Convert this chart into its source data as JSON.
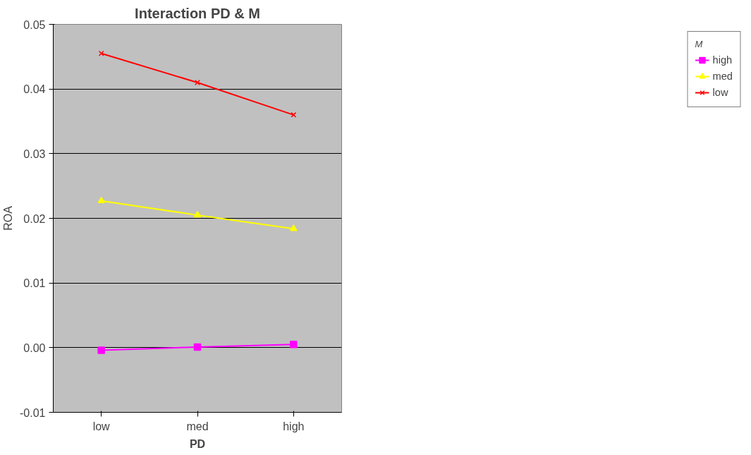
{
  "chart_data": {
    "type": "line",
    "title": "Interaction PD & M",
    "xlabel": "PD",
    "ylabel": "ROA",
    "legend_title": "M",
    "categories": [
      "low",
      "med",
      "high"
    ],
    "series": [
      {
        "name": "high",
        "color": "#ff00ff",
        "marker": "square",
        "values": [
          -0.0004,
          0.0001,
          0.0005
        ]
      },
      {
        "name": "med",
        "color": "#ffff00",
        "marker": "triangle",
        "values": [
          0.0227,
          0.0205,
          0.0184
        ]
      },
      {
        "name": "low",
        "color": "#ff0000",
        "marker": "cross",
        "values": [
          0.0455,
          0.041,
          0.036
        ]
      }
    ],
    "ylim": [
      -0.01,
      0.05
    ],
    "yticks": [
      {
        "value": -0.01,
        "label": "-0.01"
      },
      {
        "value": 0,
        "label": "0.00"
      },
      {
        "value": 0.01,
        "label": "0.01"
      },
      {
        "value": 0.02,
        "label": "0.02"
      },
      {
        "value": 0.03,
        "label": "0.03"
      },
      {
        "value": 0.04,
        "label": "0.04"
      },
      {
        "value": 0.05,
        "label": "0.05"
      }
    ],
    "grid": "y",
    "legend": "right",
    "line_style": "solid"
  }
}
